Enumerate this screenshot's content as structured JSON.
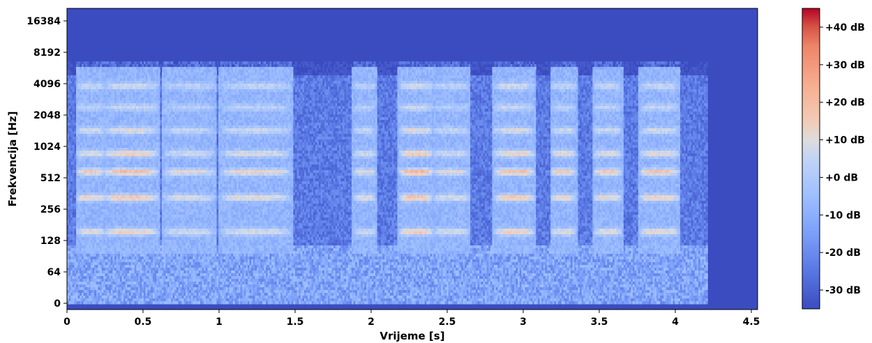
{
  "chart_data": {
    "type": "heatmap",
    "title": "",
    "xlabel": "Vrijeme [s]",
    "ylabel": "Frekvencija [Hz]",
    "xlim": [
      0,
      4.55
    ],
    "x_ticks": [
      {
        "value": 0,
        "label": "0"
      },
      {
        "value": 0.5,
        "label": "0.5"
      },
      {
        "value": 1,
        "label": "1"
      },
      {
        "value": 1.5,
        "label": "1.5"
      },
      {
        "value": 2,
        "label": "2"
      },
      {
        "value": 2.5,
        "label": "2.5"
      },
      {
        "value": 3,
        "label": "3"
      },
      {
        "value": 3.5,
        "label": "3.5"
      },
      {
        "value": 4,
        "label": "4"
      },
      {
        "value": 4.5,
        "label": "4.5"
      }
    ],
    "y_scale": "symlog (base 2)",
    "y_ticks": [
      {
        "value": 0,
        "label": "0"
      },
      {
        "value": 64,
        "label": "64"
      },
      {
        "value": 128,
        "label": "128"
      },
      {
        "value": 256,
        "label": "256"
      },
      {
        "value": 512,
        "label": "512"
      },
      {
        "value": 1024,
        "label": "1024"
      },
      {
        "value": 2048,
        "label": "2048"
      },
      {
        "value": 4096,
        "label": "4096"
      },
      {
        "value": 8192,
        "label": "8192"
      },
      {
        "value": 16384,
        "label": "16384"
      }
    ],
    "colormap": "coolwarm",
    "colorbar": {
      "range_db": [
        -35,
        45
      ],
      "ticks": [
        {
          "value": 40,
          "label": "+40 dB"
        },
        {
          "value": 30,
          "label": "+30 dB"
        },
        {
          "value": 20,
          "label": "+20 dB"
        },
        {
          "value": 10,
          "label": "+10 dB"
        },
        {
          "value": 0,
          "label": "+0 dB"
        },
        {
          "value": -10,
          "label": "-10 dB"
        },
        {
          "value": -20,
          "label": "-20 dB"
        },
        {
          "value": -30,
          "label": "-30 dB"
        }
      ]
    },
    "background_level_db": -35,
    "signal_end_s": 4.2,
    "segments": [
      {
        "start": 0.08,
        "end": 0.22,
        "peak_db": 30
      },
      {
        "start": 0.25,
        "end": 0.58,
        "peak_db": 35
      },
      {
        "start": 0.65,
        "end": 0.95,
        "peak_db": 25
      },
      {
        "start": 1.02,
        "end": 1.45,
        "peak_db": 28
      },
      {
        "start": 1.9,
        "end": 2.0,
        "peak_db": 25
      },
      {
        "start": 2.2,
        "end": 2.38,
        "peak_db": 38
      },
      {
        "start": 2.42,
        "end": 2.62,
        "peak_db": 25
      },
      {
        "start": 2.82,
        "end": 3.05,
        "peak_db": 35
      },
      {
        "start": 3.2,
        "end": 3.32,
        "peak_db": 30
      },
      {
        "start": 3.48,
        "end": 3.62,
        "peak_db": 30
      },
      {
        "start": 3.78,
        "end": 4.0,
        "peak_db": 32
      }
    ],
    "bands": [
      {
        "freq": 160,
        "strength_db": 20
      },
      {
        "freq": 340,
        "strength_db": 22
      },
      {
        "freq": 600,
        "strength_db": 24
      },
      {
        "freq": 900,
        "strength_db": 20
      },
      {
        "freq": 1500,
        "strength_db": 16
      },
      {
        "freq": 2500,
        "strength_db": 12
      },
      {
        "freq": 4000,
        "strength_db": 14
      }
    ]
  }
}
